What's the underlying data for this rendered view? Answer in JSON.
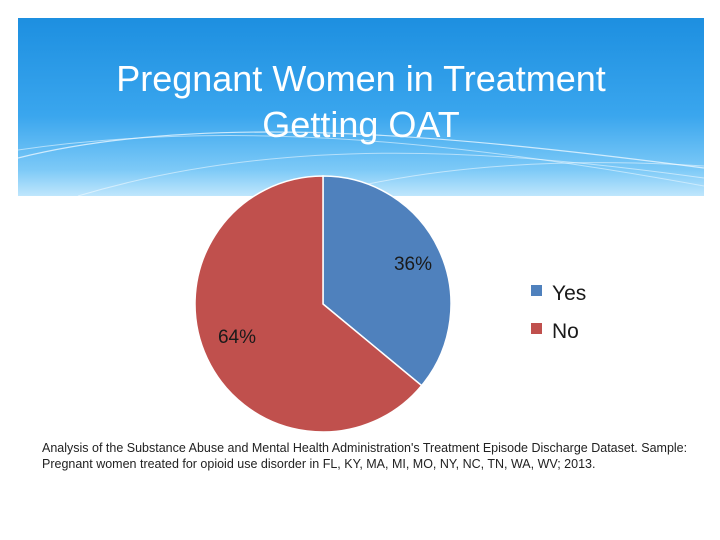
{
  "slide": {
    "title_line1": "Pregnant Women in Treatment",
    "title_line2": "Getting OAT",
    "footnote": "Analysis of the Substance Abuse and Mental Health Administration's Treatment Episode Discharge Dataset. Sample: Pregnant women treated for opioid use disorder in FL, KY, MA, MI, MO, NY, NC, TN, WA, WV; 2013."
  },
  "chart_data": {
    "type": "pie",
    "title": "Pregnant Women in Treatment Getting OAT",
    "categories": [
      "Yes",
      "No"
    ],
    "values": [
      36,
      64
    ],
    "labels": [
      "36%",
      "64%"
    ],
    "colors": [
      "#4f81bd",
      "#c0504d"
    ],
    "legend": "right"
  }
}
